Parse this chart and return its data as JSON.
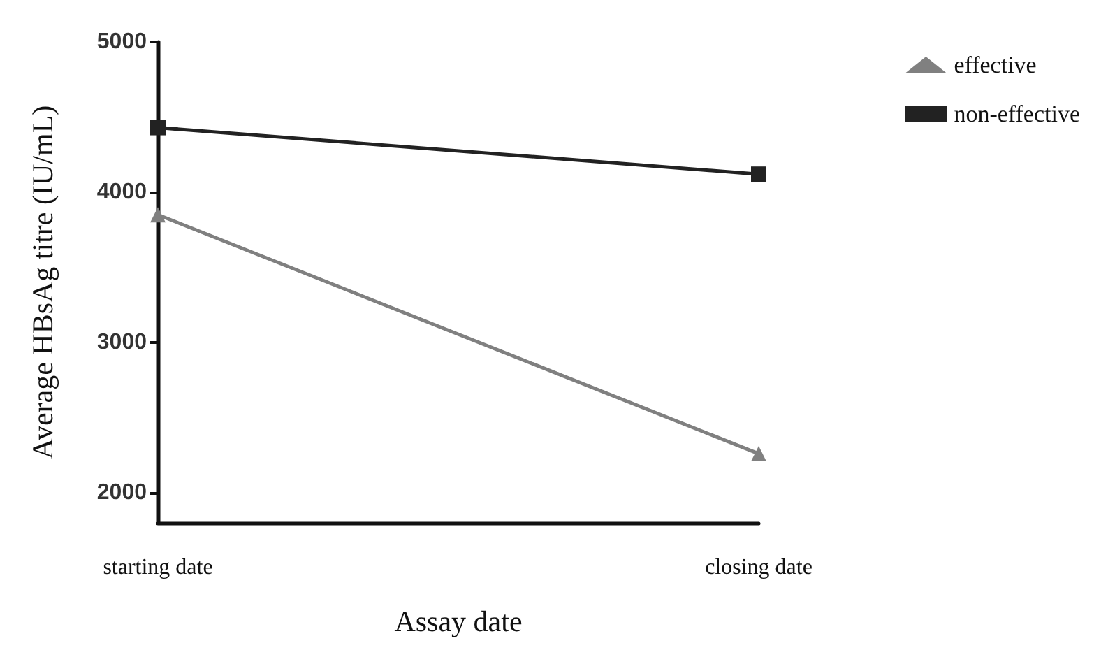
{
  "chart_data": {
    "type": "line",
    "xlabel": "Assay date",
    "ylabel": "Average HBsAg titre (IU/mL)",
    "categories": [
      "starting date",
      "closing date"
    ],
    "series": [
      {
        "name": "effective",
        "color": "#808080",
        "marker": "triangle",
        "values": [
          3850,
          2260
        ]
      },
      {
        "name": "non-effective",
        "color": "#222222",
        "marker": "square",
        "values": [
          4430,
          4120
        ]
      }
    ],
    "ylim": [
      1800,
      5000
    ],
    "yticks": [
      2000,
      3000,
      4000,
      5000
    ],
    "grid": false,
    "legend": "top right",
    "line_style": "solid"
  }
}
